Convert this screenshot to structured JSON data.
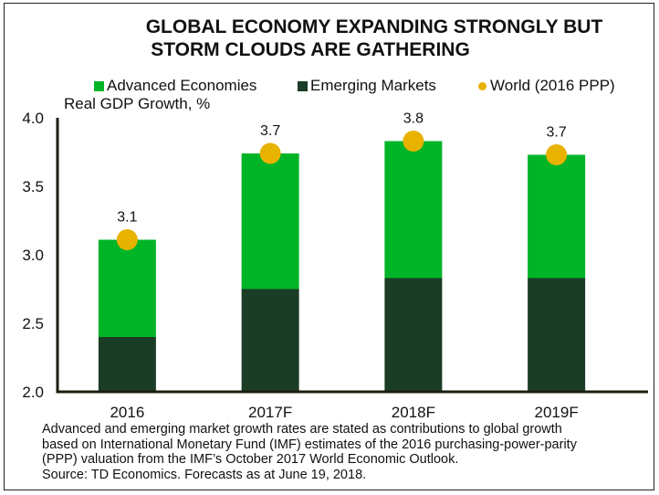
{
  "chart_data": {
    "type": "bar",
    "title": "GLOBAL ECONOMY EXPANDING STRONGLY BUT STORM CLOUDS ARE GATHERING",
    "title_lines": [
      "GLOBAL ECONOMY EXPANDING STRONGLY BUT",
      "STORM CLOUDS ARE GATHERING"
    ],
    "ylabel": "Real GDP Growth, %",
    "xlabel": "",
    "ylim": [
      2.0,
      4.0
    ],
    "yticks": [
      "2.0",
      "2.5",
      "3.0",
      "3.5",
      "4.0"
    ],
    "ytick_values": [
      2.0,
      2.5,
      3.0,
      3.5,
      4.0
    ],
    "categories": [
      "2016",
      "2017F",
      "2018F",
      "2019F"
    ],
    "stacked": true,
    "series": [
      {
        "name": "Emerging Markets",
        "kind": "bar",
        "color": "#1b3d25",
        "top_values": [
          2.4,
          2.75,
          2.83,
          2.83
        ]
      },
      {
        "name": "Advanced Economies",
        "kind": "bar",
        "color": "#00b427",
        "top_values": [
          3.11,
          3.74,
          3.83,
          3.73
        ]
      },
      {
        "name": "World (2016 PPP)",
        "kind": "point",
        "color": "#e8b200",
        "values": [
          3.1,
          3.7,
          3.8,
          3.7
        ]
      }
    ],
    "data_labels": [
      "3.1",
      "3.7",
      "3.8",
      "3.7"
    ],
    "legend": [
      {
        "label": "Advanced Economies",
        "color": "#00b427",
        "marker": "square"
      },
      {
        "label": "Emerging Markets",
        "color": "#1b3d25",
        "marker": "square"
      },
      {
        "label": "World (2016 PPP)",
        "color": "#e8b200",
        "marker": "circle"
      }
    ],
    "legend_position": "top",
    "grid": false
  },
  "footnote": {
    "lines": [
      "Advanced and emerging market growth rates are stated as contributions to global growth",
      "based on International Monetary Fund (IMF) estimates of the 2016 purchasing-power-parity",
      "(PPP) valuation from the IMF’s October 2017 World Economic Outlook.",
      "Source: TD Economics. Forecasts as at June 19, 2018."
    ]
  }
}
